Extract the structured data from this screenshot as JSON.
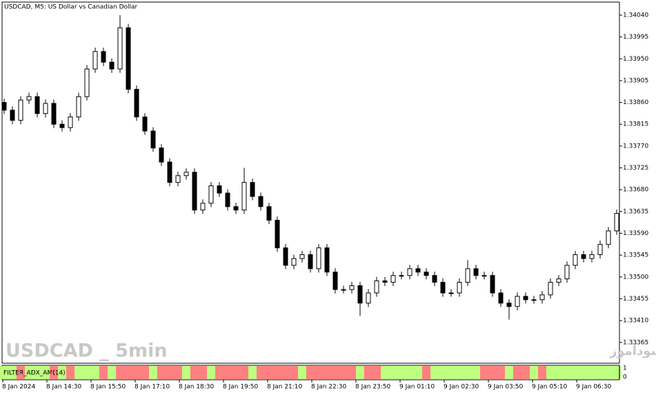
{
  "chart_data": {
    "type": "candlestick",
    "title": "USDCAD, M5:  US Dollar vs Canadian Dollar",
    "watermark": "USDCAD _ 5min",
    "watermark_right": "انتشار در سایت سودآموز",
    "ylim": [
      1.33322,
      1.34067
    ],
    "yticks": [
      {
        "value": 1.3404,
        "label": "1.34040"
      },
      {
        "value": 1.33995,
        "label": "1.33995"
      },
      {
        "value": 1.3395,
        "label": "1.33950"
      },
      {
        "value": 1.33905,
        "label": "1.33905"
      },
      {
        "value": 1.3386,
        "label": "1.33860"
      },
      {
        "value": 1.33815,
        "label": "1.33815"
      },
      {
        "value": 1.3377,
        "label": "1.33770"
      },
      {
        "value": 1.33725,
        "label": "1.33725"
      },
      {
        "value": 1.3368,
        "label": "1.33680"
      },
      {
        "value": 1.33635,
        "label": "1.33635"
      },
      {
        "value": 1.3359,
        "label": "1.33590"
      },
      {
        "value": 1.33545,
        "label": "1.33545"
      },
      {
        "value": 1.335,
        "label": "1.33500"
      },
      {
        "value": 1.33455,
        "label": "1.33455"
      },
      {
        "value": 1.3341,
        "label": "1.33410"
      },
      {
        "value": 1.33365,
        "label": "1.33365"
      }
    ],
    "xtick_labels": [
      "8 Jan 2024",
      "8 Jan 14:30",
      "8 Jan 15:50",
      "8 Jan 17:10",
      "8 Jan 18:30",
      "8 Jan 19:50",
      "8 Jan 21:10",
      "8 Jan 22:30",
      "8 Jan 23:50",
      "9 Jan 01:10",
      "9 Jan 02:30",
      "9 Jan 03:50",
      "9 Jan 05:10",
      "9 Jan 06:30"
    ],
    "open": [
      1.3386,
      1.33844,
      1.33823,
      1.33865,
      1.33872,
      1.33837,
      1.33858,
      1.33815,
      1.33808,
      1.3383,
      1.33872,
      1.33929,
      1.33965,
      1.33943,
      1.33929,
      1.34014,
      1.33887,
      1.3383,
      1.33801,
      1.33766,
      1.33737,
      1.33695,
      1.33709,
      1.33716,
      1.33638,
      1.33652,
      1.33688,
      1.33673,
      1.33645,
      1.33638,
      1.33695,
      1.33666,
      1.33645,
      1.33617,
      1.3356,
      1.33524,
      1.33538,
      1.33546,
      1.33517,
      1.3356,
      1.3351,
      1.33474,
      1.33474,
      1.33482,
      1.33446,
      1.33467,
      1.33492,
      1.33489,
      1.33503,
      1.33503,
      1.33517,
      1.3351,
      1.33503,
      1.33489,
      1.33467,
      1.33467,
      1.33489,
      1.33517,
      1.33503,
      1.33503,
      1.33467,
      1.33446,
      1.33439,
      1.3346,
      1.33453,
      1.33453,
      1.33463,
      1.33489,
      1.33496,
      1.33524,
      1.33546,
      1.33538,
      1.33546,
      1.33567,
      1.33595
    ],
    "high": [
      1.33868,
      1.33852,
      1.33873,
      1.3388,
      1.3388,
      1.33866,
      1.33866,
      1.33823,
      1.33838,
      1.3388,
      1.33937,
      1.33973,
      1.33973,
      1.33951,
      1.3404,
      1.34022,
      1.33895,
      1.33838,
      1.33809,
      1.33774,
      1.33745,
      1.33717,
      1.33724,
      1.33724,
      1.3366,
      1.33696,
      1.33696,
      1.33681,
      1.33653,
      1.33725,
      1.33703,
      1.33674,
      1.33653,
      1.33625,
      1.33568,
      1.33546,
      1.33554,
      1.33554,
      1.33568,
      1.33568,
      1.33518,
      1.33482,
      1.3349,
      1.3349,
      1.33475,
      1.335,
      1.335,
      1.33511,
      1.33511,
      1.33525,
      1.33525,
      1.33518,
      1.33511,
      1.33497,
      1.33475,
      1.33497,
      1.33535,
      1.33525,
      1.33511,
      1.33511,
      1.33475,
      1.33454,
      1.33468,
      1.33468,
      1.33461,
      1.33471,
      1.33497,
      1.33504,
      1.33532,
      1.33554,
      1.33554,
      1.33554,
      1.33575,
      1.33603,
      1.33639
    ],
    "low": [
      1.33836,
      1.33815,
      1.33815,
      1.33857,
      1.33829,
      1.33829,
      1.33807,
      1.338,
      1.338,
      1.33822,
      1.33864,
      1.33921,
      1.33935,
      1.33921,
      1.33921,
      1.33879,
      1.33822,
      1.33793,
      1.33758,
      1.33729,
      1.33687,
      1.33687,
      1.33701,
      1.3363,
      1.3363,
      1.33644,
      1.33665,
      1.33637,
      1.3363,
      1.3363,
      1.33658,
      1.33637,
      1.33609,
      1.33552,
      1.33516,
      1.33516,
      1.3353,
      1.33509,
      1.33509,
      1.33502,
      1.33466,
      1.33466,
      1.33466,
      1.3342,
      1.33438,
      1.33459,
      1.33481,
      1.33481,
      1.33495,
      1.33495,
      1.33502,
      1.33495,
      1.33481,
      1.33459,
      1.33459,
      1.33459,
      1.33481,
      1.33495,
      1.33495,
      1.33459,
      1.33438,
      1.33412,
      1.33431,
      1.33445,
      1.33445,
      1.33445,
      1.33455,
      1.33481,
      1.33488,
      1.33516,
      1.3353,
      1.3353,
      1.33538,
      1.33559,
      1.33587
    ],
    "close": [
      1.33844,
      1.33823,
      1.33865,
      1.33872,
      1.33837,
      1.33858,
      1.33815,
      1.33808,
      1.3383,
      1.33872,
      1.33929,
      1.33965,
      1.33943,
      1.33929,
      1.34014,
      1.33887,
      1.3383,
      1.33801,
      1.33766,
      1.33737,
      1.33695,
      1.33709,
      1.33716,
      1.33638,
      1.33652,
      1.33688,
      1.33673,
      1.33645,
      1.33638,
      1.33695,
      1.33666,
      1.33645,
      1.33617,
      1.3356,
      1.33524,
      1.33538,
      1.33546,
      1.33517,
      1.3356,
      1.3351,
      1.33474,
      1.33474,
      1.33482,
      1.33446,
      1.33467,
      1.33492,
      1.33489,
      1.33503,
      1.33503,
      1.33517,
      1.3351,
      1.33503,
      1.33489,
      1.33467,
      1.33467,
      1.33489,
      1.33517,
      1.33503,
      1.33503,
      1.33467,
      1.33446,
      1.33439,
      1.3346,
      1.33453,
      1.33453,
      1.33463,
      1.33489,
      1.33496,
      1.33524,
      1.33546,
      1.33538,
      1.33546,
      1.33567,
      1.33595,
      1.33631
    ],
    "indicator": {
      "name": "FILTER_ADX_AM(14)",
      "ylim": [
        0,
        1
      ],
      "yticks": [
        1,
        0
      ],
      "values": [
        1,
        1,
        1,
        1,
        1,
        1,
        1,
        1,
        1,
        1,
        1,
        1,
        1,
        1,
        1,
        1,
        1,
        1,
        1,
        1,
        1,
        1,
        1,
        1,
        1,
        1,
        1,
        1,
        1,
        1,
        1,
        1,
        1,
        1,
        1,
        1,
        1,
        1,
        1,
        1,
        1,
        1,
        1,
        1,
        1,
        1,
        1,
        1,
        1,
        1,
        1,
        1,
        1,
        1,
        1,
        1,
        1,
        1,
        1,
        1,
        1,
        1,
        1,
        1,
        1,
        1,
        1,
        1,
        1,
        1,
        1,
        1,
        1,
        1,
        1
      ],
      "colors": [
        "#7cfc00",
        "#7cfc00",
        "#ff0000",
        "#7cfc00",
        "#7cfc00",
        "#7cfc00",
        "#ff0000",
        "#7cfc00",
        "#ff0000",
        "#7cfc00",
        "#7cfc00",
        "#7cfc00",
        "#ff0000",
        "#7cfc00",
        "#ff0000",
        "#ff0000",
        "#ff0000",
        "#ff0000",
        "#7cfc00",
        "#ff0000",
        "#ff0000",
        "#ff0000",
        "#7cfc00",
        "#ff0000",
        "#ff0000",
        "#7cfc00",
        "#ff0000",
        "#ff0000",
        "#ff0000",
        "#ff0000",
        "#7cfc00",
        "#ff0000",
        "#ff0000",
        "#ff0000",
        "#ff0000",
        "#ff0000",
        "#7cfc00",
        "#ff0000",
        "#ff0000",
        "#ff0000",
        "#ff0000",
        "#ff0000",
        "#ff0000",
        "#7cfc00",
        "#ff0000",
        "#ff0000",
        "#7cfc00",
        "#7cfc00",
        "#7cfc00",
        "#7cfc00",
        "#7cfc00",
        "#ff0000",
        "#7cfc00",
        "#7cfc00",
        "#7cfc00",
        "#7cfc00",
        "#7cfc00",
        "#7cfc00",
        "#ff0000",
        "#ff0000",
        "#ff0000",
        "#7cfc00",
        "#ff0000",
        "#ff0000",
        "#7cfc00",
        "#ff0000",
        "#7cfc00",
        "#7cfc00",
        "#7cfc00",
        "#7cfc00",
        "#7cfc00",
        "#7cfc00",
        "#7cfc00",
        "#7cfc00",
        "#7cfc00"
      ]
    }
  }
}
